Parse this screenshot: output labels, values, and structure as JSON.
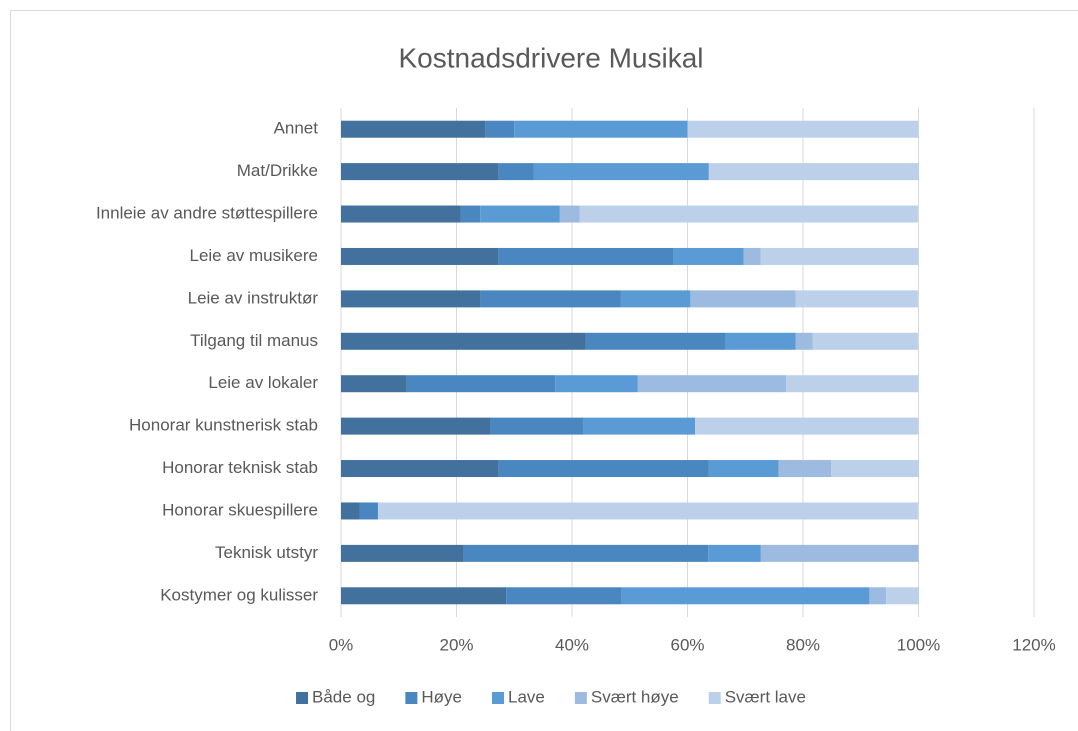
{
  "chart_data": {
    "type": "stacked_barh",
    "title": "Kostnadsdrivere Musikal",
    "categories": [
      "Annet",
      "Mat/Drikke",
      "Innleie av andre støttespillere",
      "Leie av musikere",
      "Leie av instruktør",
      "Tilgang til manus",
      "Leie av lokaler",
      "Honorar kunstnerisk stab",
      "Honorar teknisk stab",
      "Honorar skuespillere",
      "Teknisk utstyr",
      "Kostymer og kulisser"
    ],
    "series": [
      {
        "name": "Både og",
        "color": "#41719c",
        "values": [
          25,
          27.3,
          20.7,
          27.3,
          24.2,
          42.4,
          11.4,
          25.8,
          27.3,
          3.2,
          21.2,
          28.6
        ]
      },
      {
        "name": "Høye",
        "color": "#4a86c0",
        "values": [
          5,
          6.1,
          3.4,
          30.3,
          24.2,
          24.2,
          25.7,
          16.1,
          36.4,
          3.2,
          42.4,
          20
        ]
      },
      {
        "name": "Lave",
        "color": "#5b9bd5",
        "values": [
          30,
          30.3,
          13.8,
          12.1,
          12.1,
          12.1,
          14.3,
          19.4,
          12.1,
          0,
          9.1,
          42.9
        ]
      },
      {
        "name": "Svært høye",
        "color": "#9dbbe0",
        "values": [
          0,
          0,
          3.4,
          3,
          18.2,
          3,
          25.7,
          0,
          9.1,
          0,
          27.3,
          2.9
        ]
      },
      {
        "name": "Svært lave",
        "color": "#bdd0ea",
        "values": [
          40,
          36.4,
          58.6,
          27.3,
          21.2,
          18.2,
          22.9,
          38.7,
          15.2,
          93.5,
          0,
          5.7
        ]
      }
    ],
    "xlim": [
      0,
      120
    ],
    "xticks": [
      {
        "value": 0,
        "label": "0%"
      },
      {
        "value": 20,
        "label": "20%"
      },
      {
        "value": 40,
        "label": "40%"
      },
      {
        "value": 60,
        "label": "60%"
      },
      {
        "value": 80,
        "label": "80%"
      },
      {
        "value": 100,
        "label": "100%"
      },
      {
        "value": 120,
        "label": "120%"
      }
    ],
    "grid": true,
    "legend": "bottom"
  }
}
